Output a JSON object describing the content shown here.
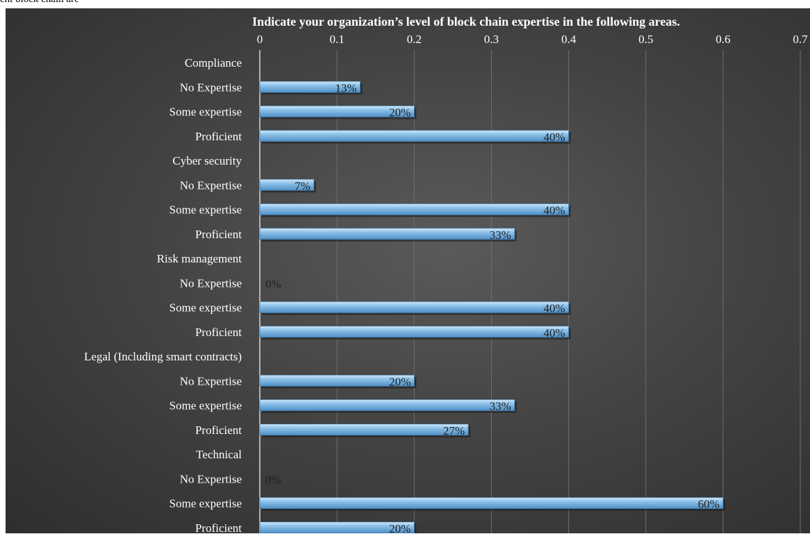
{
  "caption": "ent block chain are",
  "chart_data": {
    "type": "bar",
    "orientation": "horizontal",
    "title": "Indicate your organization’s level of block chain expertise in the following areas.",
    "xlim": [
      0,
      0.7
    ],
    "x_ticks": [
      "0",
      "0.1",
      "0.2",
      "0.3",
      "0.4",
      "0.5",
      "0.6",
      "0.7"
    ],
    "grid": true,
    "bar_color": "#6fa9d6",
    "rows": [
      {
        "label": "Compliance",
        "group": true
      },
      {
        "label": "No Expertise",
        "value": 0.13,
        "data_label": "13%"
      },
      {
        "label": "Some expertise",
        "value": 0.2,
        "data_label": "20%"
      },
      {
        "label": "Proficient",
        "value": 0.4,
        "data_label": "40%"
      },
      {
        "label": "Cyber security",
        "group": true
      },
      {
        "label": "No Expertise",
        "value": 0.07,
        "data_label": "7%"
      },
      {
        "label": "Some expertise",
        "value": 0.4,
        "data_label": "40%"
      },
      {
        "label": "Proficient",
        "value": 0.33,
        "data_label": "33%"
      },
      {
        "label": "Risk management",
        "group": true
      },
      {
        "label": "No Expertise",
        "value": 0.0,
        "data_label": "0%"
      },
      {
        "label": "Some expertise",
        "value": 0.4,
        "data_label": "40%"
      },
      {
        "label": "Proficient",
        "value": 0.4,
        "data_label": "40%"
      },
      {
        "label": "Legal (Including smart contracts)",
        "group": true
      },
      {
        "label": "No Expertise",
        "value": 0.2,
        "data_label": "20%"
      },
      {
        "label": "Some expertise",
        "value": 0.33,
        "data_label": "33%"
      },
      {
        "label": "Proficient",
        "value": 0.27,
        "data_label": "27%"
      },
      {
        "label": "Technical",
        "group": true
      },
      {
        "label": "No Expertise",
        "value": 0.0,
        "data_label": "0%"
      },
      {
        "label": "Some expertise",
        "value": 0.6,
        "data_label": "60%"
      },
      {
        "label": "Proficient",
        "value": 0.2,
        "data_label": "20%"
      }
    ]
  }
}
